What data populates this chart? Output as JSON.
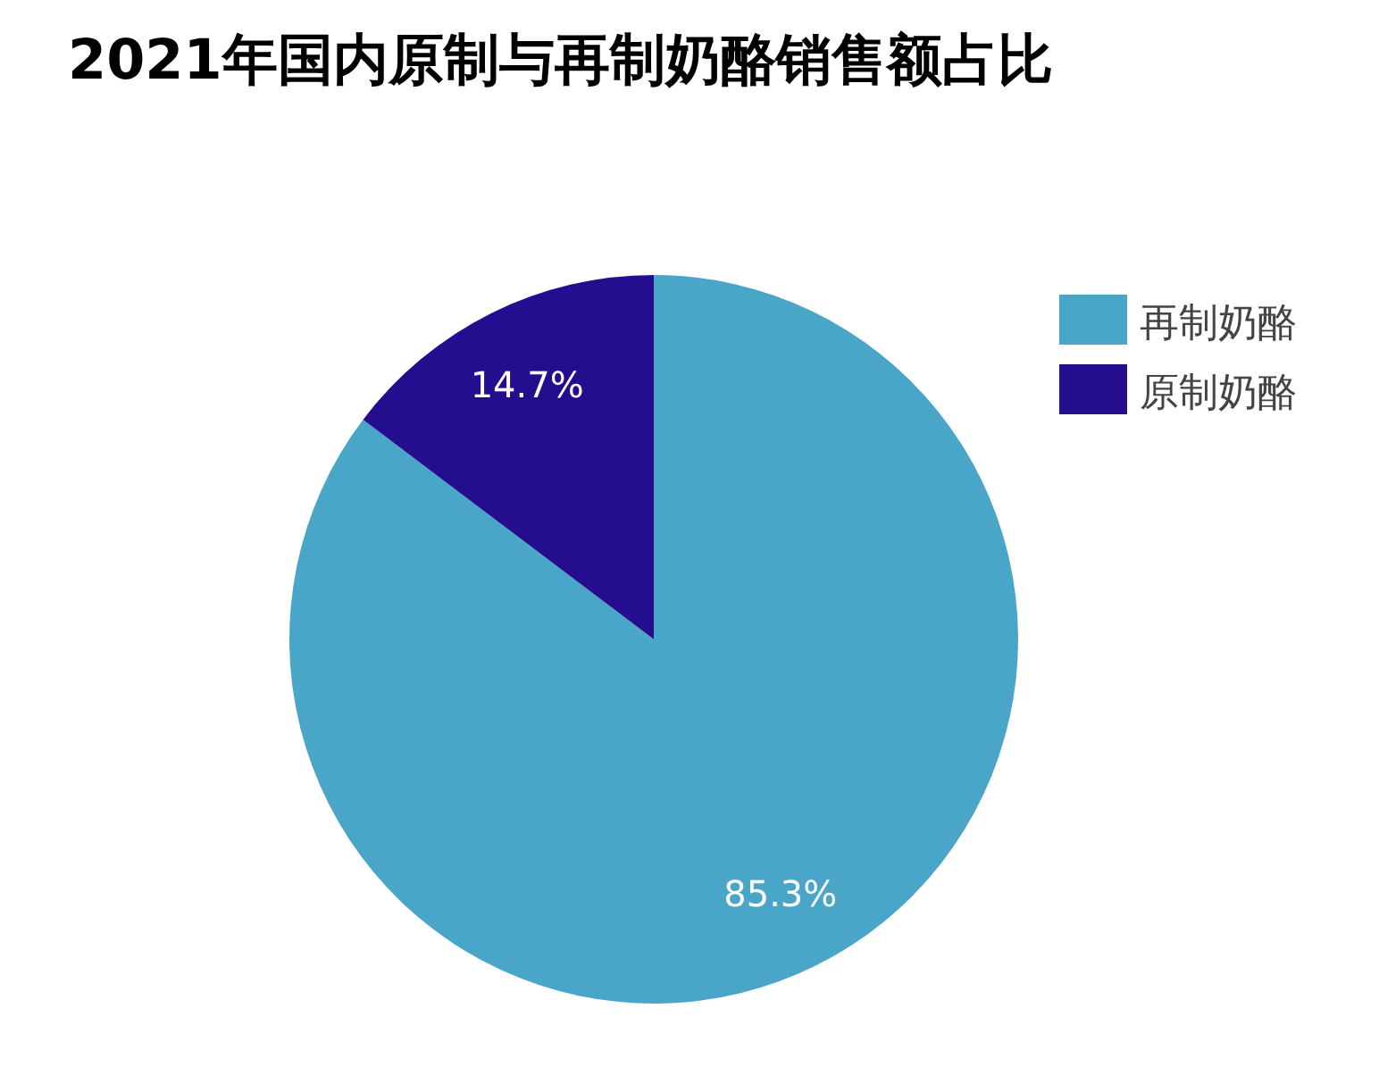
{
  "chart_data": {
    "type": "pie",
    "title": "2021年国内原制与再制奶酪销售额占比",
    "categories": [
      "再制奶酪",
      "原制奶酪"
    ],
    "values": [
      85.3,
      14.7
    ],
    "colors": [
      "#4aa6c8",
      "#250d8f"
    ],
    "value_labels": [
      "85.3%",
      "14.7%"
    ],
    "legend": "top right"
  }
}
